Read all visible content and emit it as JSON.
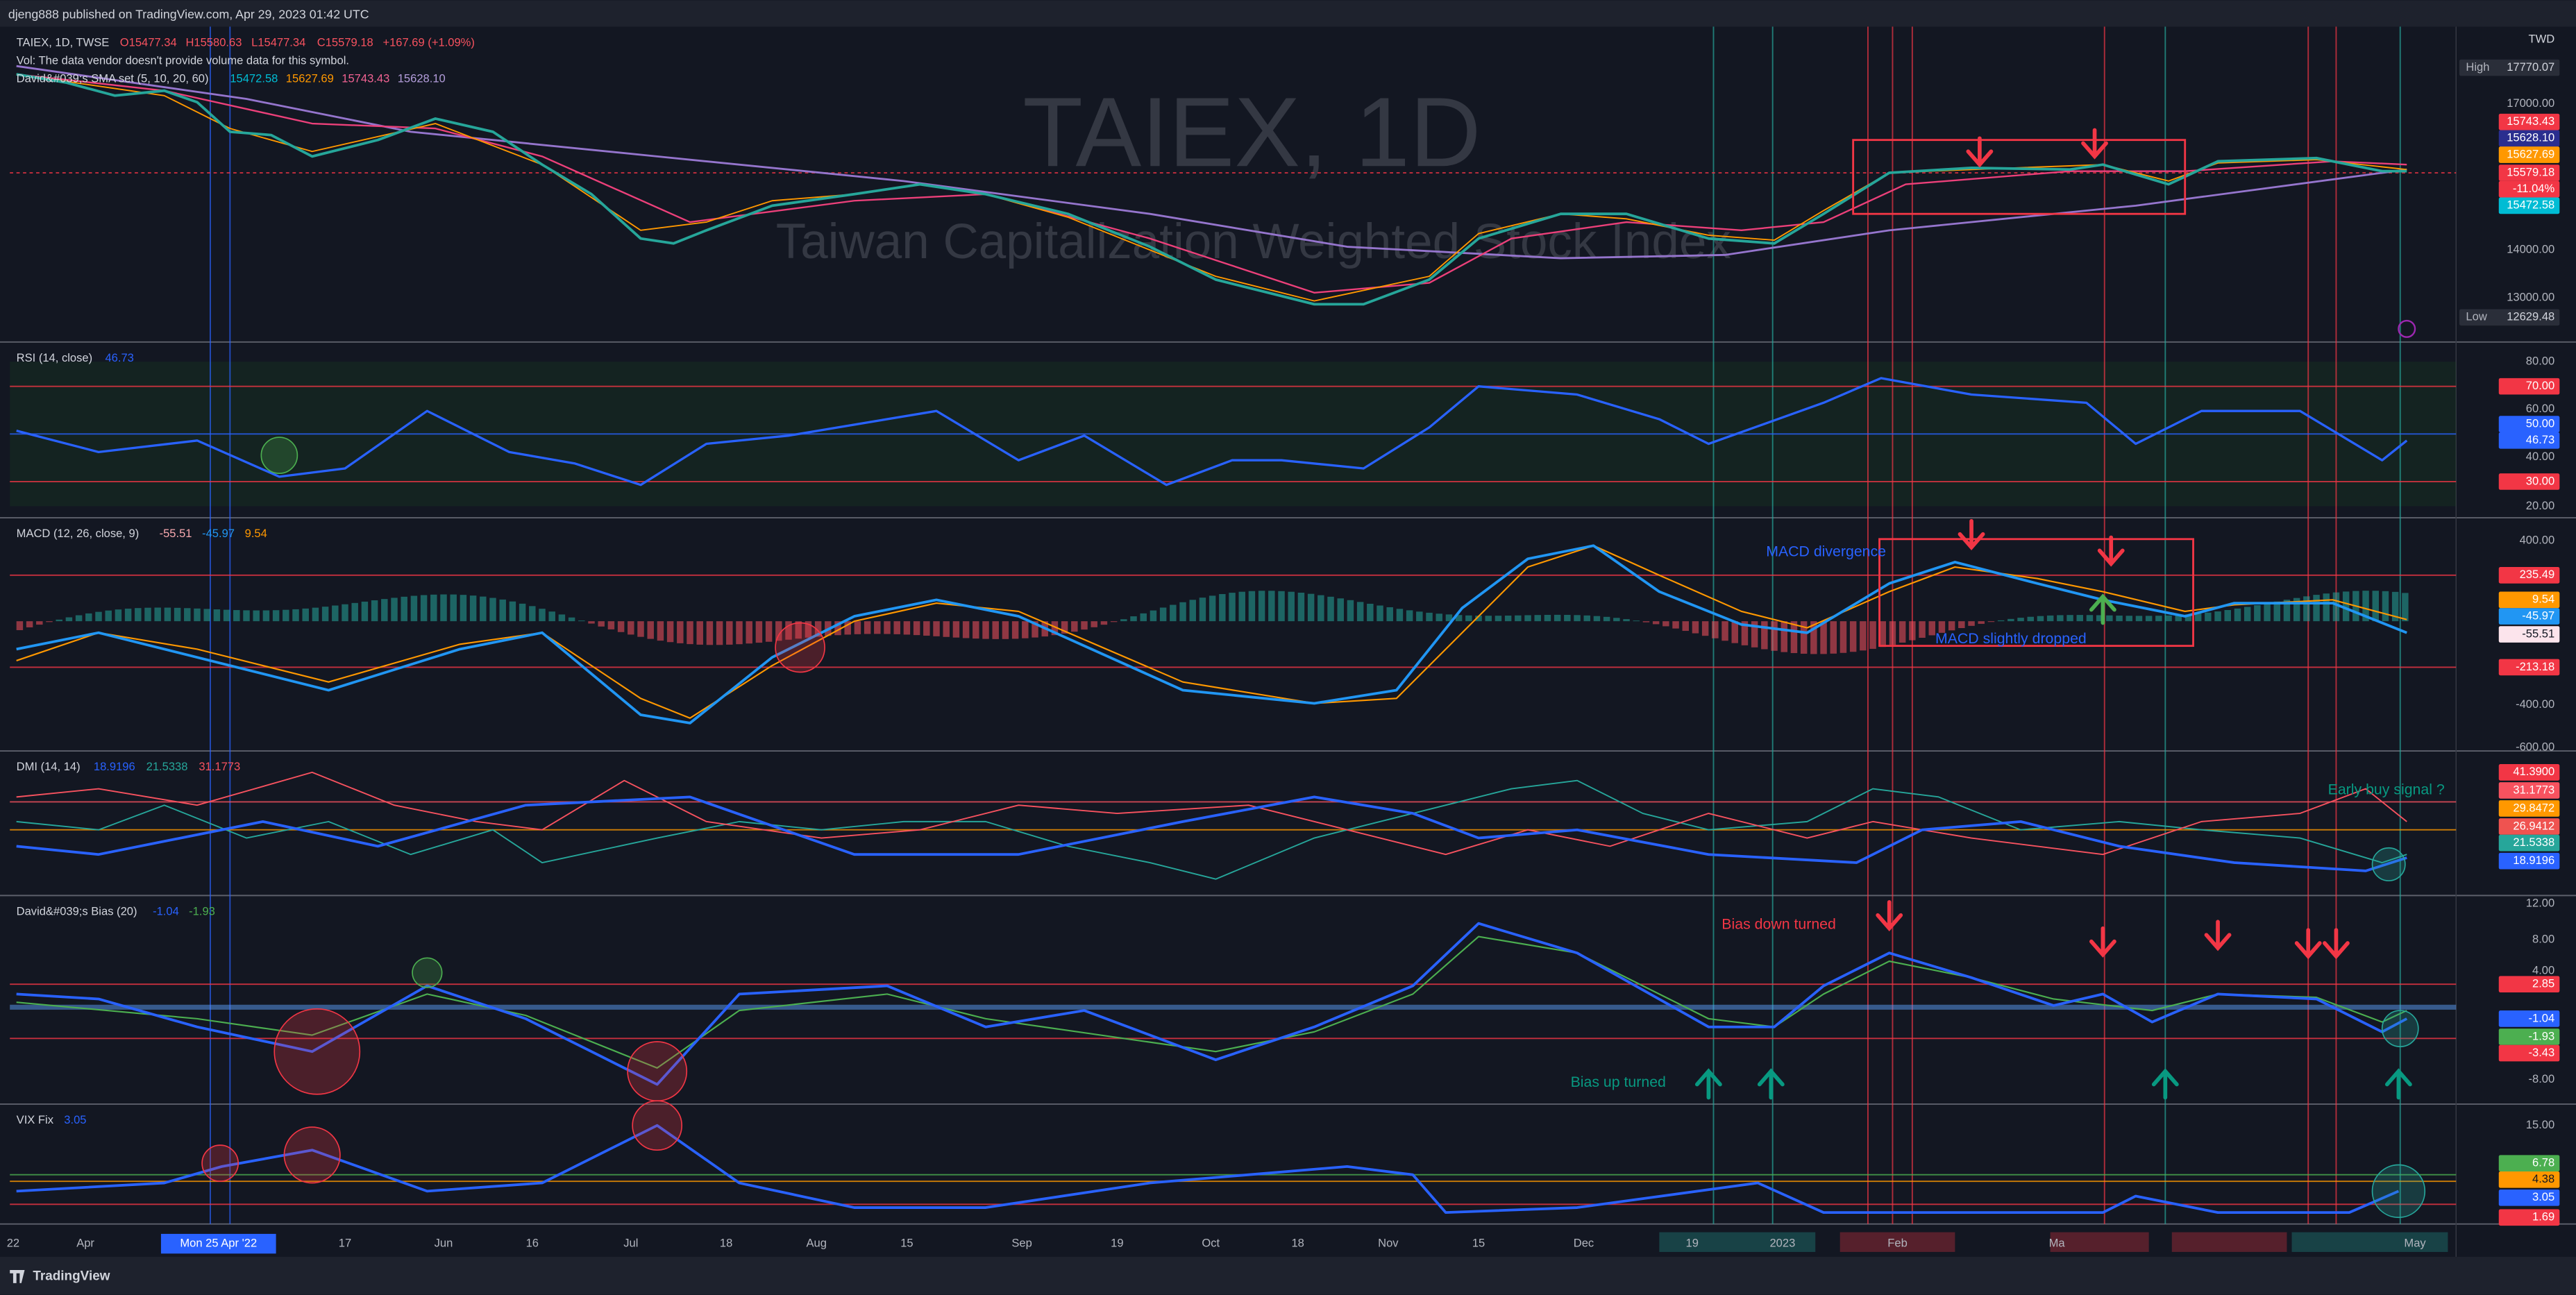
{
  "header": {
    "publisher": "djeng888 published on TradingView.com, Apr 29, 2023 01:42 UTC"
  },
  "price_pane": {
    "symbol": "TAIEX, 1D, TWSE",
    "ohlc": [
      "O15477.34",
      "H15580.63",
      "L15477.34",
      "C15579.18"
    ],
    "change": "+167.69 (+1.09%)",
    "volume_note": "Vol: The data vendor doesn't provide volume data for this symbol.",
    "sma_legend": "David&#039;s SMA set (5, 10, 20, 60)",
    "sma_values": [
      "15472.58",
      "15627.69",
      "15743.43",
      "15628.10"
    ],
    "watermark": "TAIEX, 1D",
    "watermark_subtitle": "Taiwan Capitalization Weighted Stock Index",
    "currency": "TWD",
    "high_label": "High",
    "high_value": "17770.07",
    "low_label": "Low",
    "low_value": "12629.48",
    "axis_labels": [
      "17000.00",
      "14000.00",
      "13000.00"
    ],
    "badges": [
      "15743.43",
      "15628.10",
      "15627.69",
      "15579.18",
      "-11.04%",
      "15472.58"
    ]
  },
  "rsi_pane": {
    "title": "RSI (14, close)",
    "value": "46.73",
    "axis_labels": [
      "80.00",
      "60.00",
      "40.00",
      "20.00"
    ],
    "badges": [
      "70.00",
      "50.00",
      "46.73",
      "30.00"
    ]
  },
  "macd_pane": {
    "title": "MACD (12, 26, close, 9)",
    "values": [
      "-55.51",
      "-45.97",
      "9.54"
    ],
    "axis_labels": [
      "400.00",
      "-400.00",
      "-600.00"
    ],
    "badges": [
      "235.49",
      "9.54",
      "-45.97",
      "-55.51",
      "-213.18"
    ],
    "annotations": [
      "MACD divergence",
      "MACD slightly dropped"
    ]
  },
  "dmi_pane": {
    "title": "DMI (14, 14)",
    "values": [
      "18.9196",
      "21.5338",
      "31.1773"
    ],
    "badges": [
      "41.3900",
      "31.1773",
      "29.8472",
      "26.9412",
      "21.5338",
      "18.9196"
    ],
    "annotations": [
      "Early buy signal ?"
    ]
  },
  "bias_pane": {
    "title": "David&#039;s Bias (20)",
    "values": [
      "-1.04",
      "-1.93"
    ],
    "axis_labels": [
      "12.00",
      "8.00",
      "4.00",
      "-8.00"
    ],
    "badges": [
      "2.85",
      "-1.04",
      "-1.93",
      "-3.43"
    ],
    "annotations": [
      "Bias down turned",
      "Bias up turned"
    ]
  },
  "vix_pane": {
    "title": "VIX Fix",
    "value": "3.05",
    "axis_labels": [
      "15.00"
    ],
    "badges": [
      "6.78",
      "4.38",
      "3.05",
      "1.69"
    ]
  },
  "time_axis": {
    "labels": [
      "22",
      "Apr",
      "17",
      "Jun",
      "16",
      "Jul",
      "18",
      "Aug",
      "15",
      "Sep",
      "19",
      "Oct",
      "18",
      "Nov",
      "15",
      "Dec",
      "19",
      "2023",
      "Feb",
      "Ma",
      "May"
    ],
    "cursor_label": "Mon 25 Apr '22"
  },
  "footer": {
    "brand": "TradingView"
  }
}
